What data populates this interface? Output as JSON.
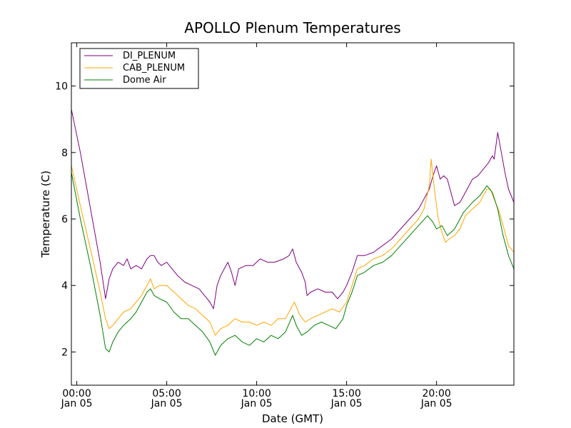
{
  "chart_data": {
    "type": "line",
    "title": "APOLLO Plenum Temperatures",
    "xlabel": "Date (GMT)",
    "ylabel": "Temperature (C)",
    "xlim": [
      -0.3,
      24.3
    ],
    "ylim": [
      1,
      11.3
    ],
    "grid": false,
    "legend_position": "top-left",
    "x_ticks": [
      {
        "value": 0,
        "time": "00:00",
        "date": "Jan 05"
      },
      {
        "value": 5,
        "time": "05:00",
        "date": "Jan 05"
      },
      {
        "value": 10,
        "time": "10:00",
        "date": "Jan 05"
      },
      {
        "value": 15,
        "time": "15:00",
        "date": "Jan 05"
      },
      {
        "value": 20,
        "time": "20:00",
        "date": "Jan 05"
      }
    ],
    "y_ticks": [
      {
        "value": 2,
        "label": "2"
      },
      {
        "value": 4,
        "label": "4"
      },
      {
        "value": 6,
        "label": "6"
      },
      {
        "value": 8,
        "label": "8"
      },
      {
        "value": 10,
        "label": "10"
      }
    ],
    "x_unit": "hours since 00:00 Jan 05 (GMT)",
    "series": [
      {
        "name": "DI_PLENUM",
        "color": "#800080",
        "points": [
          [
            -0.3,
            9.3
          ],
          [
            0.2,
            8.0
          ],
          [
            0.8,
            6.2
          ],
          [
            1.3,
            4.7
          ],
          [
            1.6,
            3.6
          ],
          [
            1.8,
            4.2
          ],
          [
            2.0,
            4.5
          ],
          [
            2.3,
            4.7
          ],
          [
            2.6,
            4.6
          ],
          [
            2.8,
            4.8
          ],
          [
            3.0,
            4.5
          ],
          [
            3.3,
            4.6
          ],
          [
            3.6,
            4.5
          ],
          [
            3.9,
            4.8
          ],
          [
            4.1,
            4.9
          ],
          [
            4.3,
            4.9
          ],
          [
            4.5,
            4.7
          ],
          [
            4.7,
            4.6
          ],
          [
            5.0,
            4.7
          ],
          [
            5.3,
            4.5
          ],
          [
            5.6,
            4.3
          ],
          [
            6.0,
            4.1
          ],
          [
            6.4,
            4.0
          ],
          [
            6.8,
            3.9
          ],
          [
            7.1,
            3.7
          ],
          [
            7.4,
            3.5
          ],
          [
            7.6,
            3.3
          ],
          [
            7.8,
            4.0
          ],
          [
            8.0,
            4.3
          ],
          [
            8.2,
            4.5
          ],
          [
            8.4,
            4.7
          ],
          [
            8.6,
            4.4
          ],
          [
            8.8,
            4.0
          ],
          [
            9.0,
            4.5
          ],
          [
            9.4,
            4.6
          ],
          [
            9.8,
            4.6
          ],
          [
            10.2,
            4.8
          ],
          [
            10.6,
            4.7
          ],
          [
            11.0,
            4.7
          ],
          [
            11.5,
            4.8
          ],
          [
            11.8,
            4.9
          ],
          [
            12.0,
            5.1
          ],
          [
            12.2,
            4.7
          ],
          [
            12.5,
            4.4
          ],
          [
            12.7,
            4.1
          ],
          [
            12.8,
            3.7
          ],
          [
            13.0,
            3.8
          ],
          [
            13.4,
            3.9
          ],
          [
            13.8,
            3.8
          ],
          [
            14.2,
            3.8
          ],
          [
            14.5,
            3.6
          ],
          [
            14.8,
            3.8
          ],
          [
            15.0,
            4.0
          ],
          [
            15.3,
            4.4
          ],
          [
            15.6,
            4.9
          ],
          [
            16.0,
            4.9
          ],
          [
            16.5,
            5.0
          ],
          [
            17.0,
            5.2
          ],
          [
            17.5,
            5.4
          ],
          [
            18.0,
            5.7
          ],
          [
            18.5,
            6.0
          ],
          [
            19.0,
            6.3
          ],
          [
            19.3,
            6.6
          ],
          [
            19.6,
            6.9
          ],
          [
            19.8,
            7.3
          ],
          [
            20.0,
            7.6
          ],
          [
            20.2,
            7.2
          ],
          [
            20.4,
            7.3
          ],
          [
            20.6,
            7.2
          ],
          [
            20.8,
            6.8
          ],
          [
            21.0,
            6.4
          ],
          [
            21.3,
            6.5
          ],
          [
            21.6,
            6.8
          ],
          [
            22.0,
            7.2
          ],
          [
            22.3,
            7.3
          ],
          [
            22.6,
            7.5
          ],
          [
            22.9,
            7.7
          ],
          [
            23.1,
            7.9
          ],
          [
            23.2,
            7.8
          ],
          [
            23.4,
            8.6
          ],
          [
            23.6,
            8.0
          ],
          [
            23.8,
            7.4
          ],
          [
            24.0,
            6.9
          ],
          [
            24.3,
            6.5
          ]
        ]
      },
      {
        "name": "CAB_PLENUM",
        "color": "#ffa500",
        "points": [
          [
            -0.3,
            7.6
          ],
          [
            0.2,
            6.4
          ],
          [
            0.8,
            5.0
          ],
          [
            1.3,
            3.8
          ],
          [
            1.6,
            3.0
          ],
          [
            1.8,
            2.7
          ],
          [
            2.0,
            2.8
          ],
          [
            2.3,
            3.0
          ],
          [
            2.6,
            3.2
          ],
          [
            3.0,
            3.3
          ],
          [
            3.3,
            3.5
          ],
          [
            3.6,
            3.7
          ],
          [
            3.9,
            4.0
          ],
          [
            4.1,
            4.2
          ],
          [
            4.3,
            3.9
          ],
          [
            4.6,
            4.0
          ],
          [
            5.0,
            4.0
          ],
          [
            5.4,
            3.8
          ],
          [
            5.8,
            3.6
          ],
          [
            6.2,
            3.4
          ],
          [
            6.6,
            3.3
          ],
          [
            7.0,
            3.1
          ],
          [
            7.4,
            2.9
          ],
          [
            7.7,
            2.5
          ],
          [
            8.0,
            2.7
          ],
          [
            8.4,
            2.8
          ],
          [
            8.8,
            3.0
          ],
          [
            9.2,
            2.9
          ],
          [
            9.6,
            2.9
          ],
          [
            10.0,
            2.8
          ],
          [
            10.4,
            2.9
          ],
          [
            10.8,
            2.8
          ],
          [
            11.2,
            3.0
          ],
          [
            11.6,
            3.0
          ],
          [
            11.9,
            3.3
          ],
          [
            12.1,
            3.5
          ],
          [
            12.4,
            3.1
          ],
          [
            12.7,
            2.9
          ],
          [
            13.0,
            3.0
          ],
          [
            13.4,
            3.1
          ],
          [
            13.8,
            3.2
          ],
          [
            14.2,
            3.3
          ],
          [
            14.6,
            3.2
          ],
          [
            15.0,
            3.5
          ],
          [
            15.3,
            4.0
          ],
          [
            15.6,
            4.5
          ],
          [
            16.0,
            4.6
          ],
          [
            16.5,
            4.8
          ],
          [
            17.0,
            4.9
          ],
          [
            17.5,
            5.1
          ],
          [
            18.0,
            5.4
          ],
          [
            18.5,
            5.7
          ],
          [
            19.0,
            6.0
          ],
          [
            19.3,
            6.3
          ],
          [
            19.6,
            7.0
          ],
          [
            19.7,
            7.8
          ],
          [
            19.9,
            6.8
          ],
          [
            20.1,
            6.0
          ],
          [
            20.3,
            5.6
          ],
          [
            20.5,
            5.3
          ],
          [
            20.7,
            5.4
          ],
          [
            21.0,
            5.5
          ],
          [
            21.3,
            5.7
          ],
          [
            21.6,
            6.1
          ],
          [
            22.0,
            6.3
          ],
          [
            22.4,
            6.5
          ],
          [
            22.8,
            6.9
          ],
          [
            23.0,
            6.9
          ],
          [
            23.2,
            6.6
          ],
          [
            23.5,
            6.2
          ],
          [
            23.8,
            5.6
          ],
          [
            24.0,
            5.2
          ],
          [
            24.3,
            5.0
          ]
        ]
      },
      {
        "name": "Dome Air",
        "color": "#008000",
        "points": [
          [
            -0.3,
            7.4
          ],
          [
            0.2,
            6.0
          ],
          [
            0.8,
            4.5
          ],
          [
            1.3,
            3.1
          ],
          [
            1.6,
            2.1
          ],
          [
            1.8,
            2.0
          ],
          [
            2.0,
            2.3
          ],
          [
            2.3,
            2.6
          ],
          [
            2.6,
            2.8
          ],
          [
            3.0,
            3.0
          ],
          [
            3.3,
            3.2
          ],
          [
            3.6,
            3.5
          ],
          [
            3.9,
            3.8
          ],
          [
            4.1,
            3.9
          ],
          [
            4.3,
            3.7
          ],
          [
            4.6,
            3.6
          ],
          [
            5.0,
            3.5
          ],
          [
            5.4,
            3.2
          ],
          [
            5.8,
            3.0
          ],
          [
            6.2,
            3.0
          ],
          [
            6.6,
            2.8
          ],
          [
            7.0,
            2.6
          ],
          [
            7.4,
            2.3
          ],
          [
            7.7,
            1.9
          ],
          [
            8.0,
            2.2
          ],
          [
            8.4,
            2.4
          ],
          [
            8.8,
            2.5
          ],
          [
            9.2,
            2.3
          ],
          [
            9.6,
            2.2
          ],
          [
            10.0,
            2.4
          ],
          [
            10.4,
            2.3
          ],
          [
            10.8,
            2.5
          ],
          [
            11.2,
            2.4
          ],
          [
            11.6,
            2.6
          ],
          [
            12.0,
            3.1
          ],
          [
            12.2,
            2.8
          ],
          [
            12.5,
            2.5
          ],
          [
            12.8,
            2.6
          ],
          [
            13.2,
            2.8
          ],
          [
            13.6,
            2.9
          ],
          [
            14.0,
            2.8
          ],
          [
            14.4,
            2.7
          ],
          [
            14.8,
            3.0
          ],
          [
            15.0,
            3.4
          ],
          [
            15.3,
            3.8
          ],
          [
            15.6,
            4.3
          ],
          [
            16.0,
            4.4
          ],
          [
            16.5,
            4.6
          ],
          [
            17.0,
            4.7
          ],
          [
            17.5,
            4.9
          ],
          [
            18.0,
            5.2
          ],
          [
            18.5,
            5.5
          ],
          [
            19.0,
            5.8
          ],
          [
            19.5,
            6.1
          ],
          [
            19.8,
            5.9
          ],
          [
            20.0,
            5.7
          ],
          [
            20.3,
            5.8
          ],
          [
            20.6,
            5.5
          ],
          [
            21.0,
            5.7
          ],
          [
            21.5,
            6.2
          ],
          [
            22.0,
            6.5
          ],
          [
            22.4,
            6.7
          ],
          [
            22.8,
            7.0
          ],
          [
            23.1,
            6.8
          ],
          [
            23.4,
            6.3
          ],
          [
            23.7,
            5.5
          ],
          [
            24.0,
            4.9
          ],
          [
            24.3,
            4.5
          ]
        ]
      }
    ]
  }
}
